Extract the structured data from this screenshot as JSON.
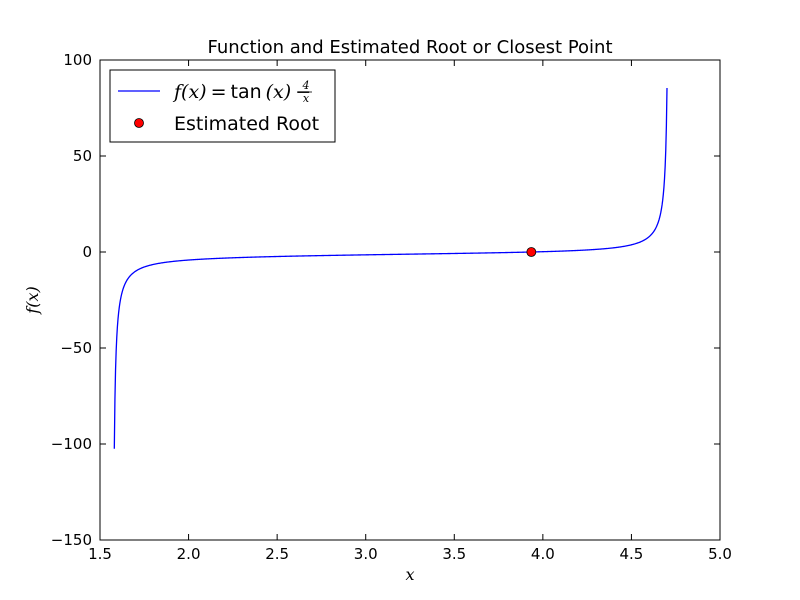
{
  "chart_data": {
    "type": "line",
    "title": "Function and Estimated Root or Closest Point",
    "xlabel": "x",
    "ylabel": "f(x)",
    "xlim": [
      1.5,
      5.0
    ],
    "ylim": [
      -150,
      100
    ],
    "xticks": [
      1.5,
      2.0,
      2.5,
      3.0,
      3.5,
      4.0,
      4.5,
      5.0
    ],
    "xtick_labels": [
      "1.5",
      "2.0",
      "2.5",
      "3.0",
      "3.5",
      "4.0",
      "4.5",
      "5.0"
    ],
    "yticks": [
      -150,
      -100,
      -50,
      0,
      50,
      100
    ],
    "ytick_labels": [
      "−150",
      "−100",
      "−50",
      "0",
      "50",
      "100"
    ],
    "grid": false,
    "legend_position": "top-left",
    "series": [
      {
        "name": "f(x) = tan(x) − 4/x",
        "kind": "line",
        "color": "#0000ff",
        "function": "tan(x) - 4/x",
        "x_range": [
          1.5808,
          4.7008
        ]
      },
      {
        "name": "Estimated Root",
        "kind": "marker",
        "color": "#ff0000",
        "points": [
          {
            "x": 3.935,
            "y": 0
          }
        ]
      }
    ],
    "legend": {
      "line_label_parts": {
        "lhs": "f(x)",
        "eq": "=",
        "fn": "tan",
        "arg": "(x)",
        "minus": "−",
        "num": "4",
        "den": "x"
      },
      "marker_label": "Estimated Root"
    }
  }
}
